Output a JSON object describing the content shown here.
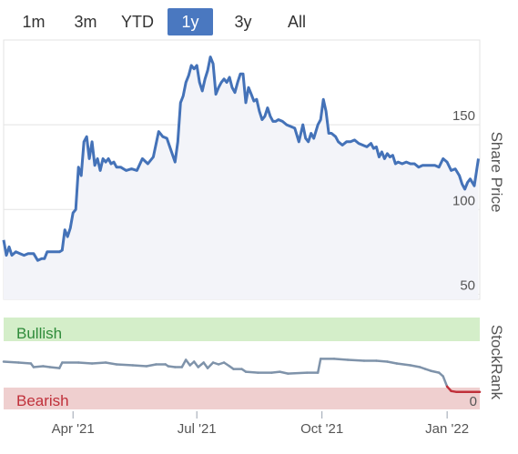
{
  "range_selector": {
    "buttons": [
      "1m",
      "3m",
      "YTD",
      "1y",
      "3y",
      "All"
    ],
    "active": "1y"
  },
  "colors": {
    "price_line": "#4472b8",
    "area_fill": "#f3f4f9",
    "bullish_band": "#d4eec9",
    "bearish_band": "#efcfcf",
    "bullish_text": "#2e8b3a",
    "bearish_text": "#c0303a",
    "rank_line": "#7f93aa",
    "rank_line_low": "#c0303a",
    "grid": "#e3e3e3"
  },
  "chart_data": [
    {
      "type": "area",
      "ylabel": "Share Price",
      "y_ticks": [
        50,
        100,
        150
      ],
      "ylim": [
        47,
        200
      ],
      "x_ticks": [
        "Apr '21",
        "Jul '21",
        "Oct '21",
        "Jan '22"
      ],
      "xlim": [
        "2021-02-09",
        "2022-01-25"
      ],
      "grid": true,
      "series": [
        {
          "points": [
            [
              "2021-02-09",
              82
            ],
            [
              "2021-02-11",
              73
            ],
            [
              "2021-02-13",
              78
            ],
            [
              "2021-02-15",
              73
            ],
            [
              "2021-02-18",
              75
            ],
            [
              "2021-02-21",
              74
            ],
            [
              "2021-02-24",
              73
            ],
            [
              "2021-02-27",
              74
            ],
            [
              "2021-03-03",
              74
            ],
            [
              "2021-03-06",
              70
            ],
            [
              "2021-03-09",
              71
            ],
            [
              "2021-03-11",
              71
            ],
            [
              "2021-03-13",
              75
            ],
            [
              "2021-03-16",
              75
            ],
            [
              "2021-03-19",
              75
            ],
            [
              "2021-03-22",
              75
            ],
            [
              "2021-03-24",
              76
            ],
            [
              "2021-03-26",
              88
            ],
            [
              "2021-03-28",
              84
            ],
            [
              "2021-03-30",
              89
            ],
            [
              "2021-04-01",
              98
            ],
            [
              "2021-04-03",
              100
            ],
            [
              "2021-04-05",
              125
            ],
            [
              "2021-04-07",
              120
            ],
            [
              "2021-04-09",
              140
            ],
            [
              "2021-04-11",
              143
            ],
            [
              "2021-04-13",
              130
            ],
            [
              "2021-04-15",
              140
            ],
            [
              "2021-04-17",
              126
            ],
            [
              "2021-04-19",
              130
            ],
            [
              "2021-04-21",
              123
            ],
            [
              "2021-04-23",
              130
            ],
            [
              "2021-04-25",
              128
            ],
            [
              "2021-04-27",
              130
            ],
            [
              "2021-04-29",
              127
            ],
            [
              "2021-05-01",
              128
            ],
            [
              "2021-05-03",
              125
            ],
            [
              "2021-05-06",
              125
            ],
            [
              "2021-05-10",
              123
            ],
            [
              "2021-05-14",
              124
            ],
            [
              "2021-05-18",
              123
            ],
            [
              "2021-05-22",
              130
            ],
            [
              "2021-05-26",
              127
            ],
            [
              "2021-05-30",
              131
            ],
            [
              "2021-06-03",
              146
            ],
            [
              "2021-06-06",
              143
            ],
            [
              "2021-06-09",
              142
            ],
            [
              "2021-06-12",
              135
            ],
            [
              "2021-06-15",
              128
            ],
            [
              "2021-06-17",
              140
            ],
            [
              "2021-06-19",
              163
            ],
            [
              "2021-06-21",
              167
            ],
            [
              "2021-06-23",
              175
            ],
            [
              "2021-06-25",
              179
            ],
            [
              "2021-06-27",
              185
            ],
            [
              "2021-06-29",
              183
            ],
            [
              "2021-07-01",
              185
            ],
            [
              "2021-07-03",
              175
            ],
            [
              "2021-07-05",
              170
            ],
            [
              "2021-07-07",
              177
            ],
            [
              "2021-07-09",
              182
            ],
            [
              "2021-07-11",
              190
            ],
            [
              "2021-07-13",
              186
            ],
            [
              "2021-07-15",
              168
            ],
            [
              "2021-07-17",
              172
            ],
            [
              "2021-07-19",
              175
            ],
            [
              "2021-07-21",
              177
            ],
            [
              "2021-07-23",
              175
            ],
            [
              "2021-07-25",
              178
            ],
            [
              "2021-07-27",
              172
            ],
            [
              "2021-07-29",
              169
            ],
            [
              "2021-07-31",
              175
            ],
            [
              "2021-08-02",
              180
            ],
            [
              "2021-08-04",
              180
            ],
            [
              "2021-08-06",
              163
            ],
            [
              "2021-08-08",
              172
            ],
            [
              "2021-08-10",
              168
            ],
            [
              "2021-08-12",
              164
            ],
            [
              "2021-08-14",
              165
            ],
            [
              "2021-08-16",
              158
            ],
            [
              "2021-08-18",
              153
            ],
            [
              "2021-08-20",
              155
            ],
            [
              "2021-08-22",
              160
            ],
            [
              "2021-08-24",
              155
            ],
            [
              "2021-08-26",
              152
            ],
            [
              "2021-08-28",
              152
            ],
            [
              "2021-08-30",
              153
            ],
            [
              "2021-09-02",
              152
            ],
            [
              "2021-09-05",
              150
            ],
            [
              "2021-09-08",
              149
            ],
            [
              "2021-09-11",
              148
            ],
            [
              "2021-09-14",
              140
            ],
            [
              "2021-09-17",
              150
            ],
            [
              "2021-09-19",
              142
            ],
            [
              "2021-09-21",
              140
            ],
            [
              "2021-09-23",
              145
            ],
            [
              "2021-09-25",
              142
            ],
            [
              "2021-09-28",
              150
            ],
            [
              "2021-09-30",
              153
            ],
            [
              "2021-10-02",
              165
            ],
            [
              "2021-10-04",
              158
            ],
            [
              "2021-10-06",
              145
            ],
            [
              "2021-10-08",
              145
            ],
            [
              "2021-10-11",
              143
            ],
            [
              "2021-10-13",
              140
            ],
            [
              "2021-10-16",
              138
            ],
            [
              "2021-10-19",
              140
            ],
            [
              "2021-10-22",
              140
            ],
            [
              "2021-10-25",
              141
            ],
            [
              "2021-10-28",
              139
            ],
            [
              "2021-10-31",
              138
            ],
            [
              "2021-11-03",
              137
            ],
            [
              "2021-11-06",
              139
            ],
            [
              "2021-11-08",
              136
            ],
            [
              "2021-11-10",
              137
            ],
            [
              "2021-11-12",
              131
            ],
            [
              "2021-11-14",
              134
            ],
            [
              "2021-11-16",
              130
            ],
            [
              "2021-11-18",
              133
            ],
            [
              "2021-11-20",
              131
            ],
            [
              "2021-11-22",
              132
            ],
            [
              "2021-11-24",
              127
            ],
            [
              "2021-11-26",
              128
            ],
            [
              "2021-11-29",
              127
            ],
            [
              "2021-12-02",
              128
            ],
            [
              "2021-12-05",
              127
            ],
            [
              "2021-12-08",
              127
            ],
            [
              "2021-12-11",
              125
            ],
            [
              "2021-12-14",
              126
            ],
            [
              "2021-12-17",
              126
            ],
            [
              "2021-12-20",
              126
            ],
            [
              "2021-12-23",
              126
            ],
            [
              "2021-12-26",
              125
            ],
            [
              "2021-12-29",
              130
            ],
            [
              "2022-01-01",
              128
            ],
            [
              "2022-01-04",
              123
            ],
            [
              "2022-01-07",
              124
            ],
            [
              "2022-01-10",
              120
            ],
            [
              "2022-01-12",
              115
            ],
            [
              "2022-01-14",
              112
            ],
            [
              "2022-01-16",
              116
            ],
            [
              "2022-01-18",
              118
            ],
            [
              "2022-01-21",
              114
            ],
            [
              "2022-01-24",
              130
            ]
          ]
        }
      ]
    },
    {
      "type": "line",
      "ylabel": "StockRank",
      "y_ticks": [
        0
      ],
      "ylim": [
        0,
        100
      ],
      "x_ticks": [
        "Apr '21",
        "Jul '21",
        "Oct '21",
        "Jan '22"
      ],
      "xlim": [
        "2021-02-09",
        "2022-01-25"
      ],
      "annotations": [
        "Bullish",
        "Bearish"
      ],
      "series": [
        {
          "points": [
            [
              "2021-02-09",
              52
            ],
            [
              "2021-02-20",
              51
            ],
            [
              "2021-03-01",
              50
            ],
            [
              "2021-03-03",
              46
            ],
            [
              "2021-03-10",
              47
            ],
            [
              "2021-03-15",
              46
            ],
            [
              "2021-03-22",
              45
            ],
            [
              "2021-03-24",
              51
            ],
            [
              "2021-04-05",
              51
            ],
            [
              "2021-04-15",
              50
            ],
            [
              "2021-04-25",
              51
            ],
            [
              "2021-05-03",
              49
            ],
            [
              "2021-05-15",
              48
            ],
            [
              "2021-05-25",
              47
            ],
            [
              "2021-06-01",
              49
            ],
            [
              "2021-06-08",
              49
            ],
            [
              "2021-06-10",
              47
            ],
            [
              "2021-06-15",
              46
            ],
            [
              "2021-06-20",
              46
            ],
            [
              "2021-06-23",
              54
            ],
            [
              "2021-06-26",
              48
            ],
            [
              "2021-06-29",
              52
            ],
            [
              "2021-07-02",
              46
            ],
            [
              "2021-07-06",
              51
            ],
            [
              "2021-07-09",
              45
            ],
            [
              "2021-07-13",
              51
            ],
            [
              "2021-07-17",
              49
            ],
            [
              "2021-07-21",
              51
            ],
            [
              "2021-07-25",
              47
            ],
            [
              "2021-07-28",
              44
            ],
            [
              "2021-08-03",
              44
            ],
            [
              "2021-08-06",
              41
            ],
            [
              "2021-08-15",
              40
            ],
            [
              "2021-08-25",
              40
            ],
            [
              "2021-08-31",
              41
            ],
            [
              "2021-09-06",
              39
            ],
            [
              "2021-09-20",
              40
            ],
            [
              "2021-09-28",
              40
            ],
            [
              "2021-09-30",
              55
            ],
            [
              "2021-10-10",
              55
            ],
            [
              "2021-10-20",
              54
            ],
            [
              "2021-11-01",
              53
            ],
            [
              "2021-11-10",
              53
            ],
            [
              "2021-11-18",
              52
            ],
            [
              "2021-11-25",
              50
            ],
            [
              "2021-12-05",
              48
            ],
            [
              "2021-12-12",
              46
            ],
            [
              "2021-12-16",
              44
            ],
            [
              "2021-12-20",
              42
            ],
            [
              "2021-12-26",
              40
            ],
            [
              "2021-12-29",
              36
            ],
            [
              "2022-01-01",
              25
            ],
            [
              "2022-01-04",
              20
            ],
            [
              "2022-01-08",
              19
            ],
            [
              "2022-01-15",
              19
            ],
            [
              "2022-01-25",
              19
            ]
          ]
        }
      ]
    }
  ]
}
